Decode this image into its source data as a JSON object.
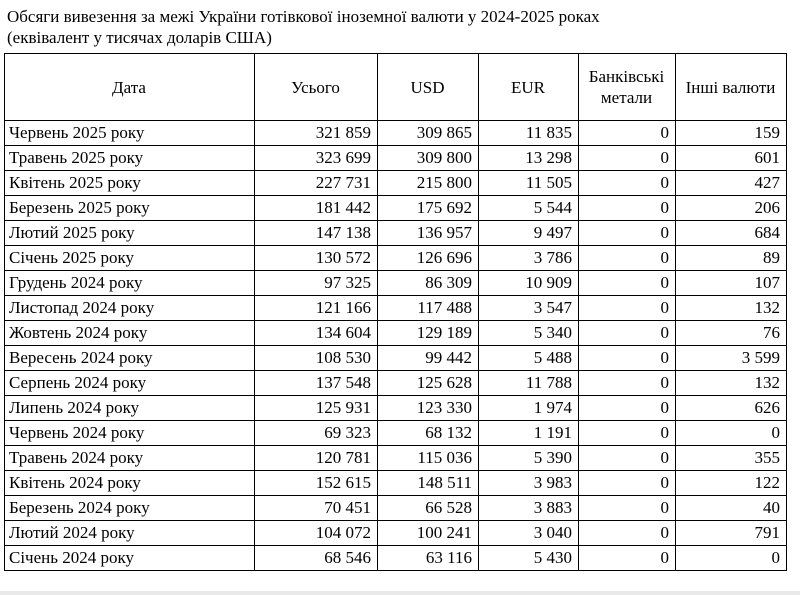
{
  "title": {
    "line1": "Обсяги вивезення за межі України готівкової іноземної валюти у 2024-2025 роках",
    "line2": "(еквівалент у тисячах доларів США)"
  },
  "table": {
    "headers": [
      "Дата",
      "Усього",
      "USD",
      "EUR",
      "Банківські метали",
      "Інші валюти"
    ],
    "rows": [
      [
        "Червень 2025 року",
        "321 859",
        "309 865",
        "11 835",
        "0",
        "159"
      ],
      [
        "Травень 2025 року",
        "323 699",
        "309 800",
        "13 298",
        "0",
        "601"
      ],
      [
        "Квітень 2025 року",
        "227 731",
        "215 800",
        "11 505",
        "0",
        "427"
      ],
      [
        "Березень 2025 року",
        "181 442",
        "175 692",
        "5 544",
        "0",
        "206"
      ],
      [
        "Лютий 2025 року",
        "147 138",
        "136 957",
        "9 497",
        "0",
        "684"
      ],
      [
        "Січень 2025 року",
        "130 572",
        "126 696",
        "3 786",
        "0",
        "89"
      ],
      [
        "Грудень 2024 року",
        "97 325",
        "86 309",
        "10 909",
        "0",
        "107"
      ],
      [
        "Листопад 2024 року",
        "121 166",
        "117 488",
        "3 547",
        "0",
        "132"
      ],
      [
        "Жовтень 2024 року",
        "134 604",
        "129 189",
        "5 340",
        "0",
        "76"
      ],
      [
        "Вересень 2024 року",
        "108 530",
        "99 442",
        "5 488",
        "0",
        "3 599"
      ],
      [
        "Серпень 2024 року",
        "137 548",
        "125 628",
        "11 788",
        "0",
        "132"
      ],
      [
        "Липень 2024 року",
        "125 931",
        "123 330",
        "1 974",
        "0",
        "626"
      ],
      [
        "Червень 2024 року",
        "69 323",
        "68 132",
        "1 191",
        "0",
        "0"
      ],
      [
        "Травень 2024 року",
        "120 781",
        "115 036",
        "5 390",
        "0",
        "355"
      ],
      [
        "Квітень 2024 року",
        "152 615",
        "148 511",
        "3 983",
        "0",
        "122"
      ],
      [
        "Березень 2024 року",
        "70 451",
        "66 528",
        "3 883",
        "0",
        "40"
      ],
      [
        "Лютий 2024 року",
        "104 072",
        "100 241",
        "3 040",
        "0",
        "791"
      ],
      [
        "Січень 2024 року",
        "68 546",
        "63 116",
        "5 430",
        "0",
        "0"
      ]
    ]
  }
}
